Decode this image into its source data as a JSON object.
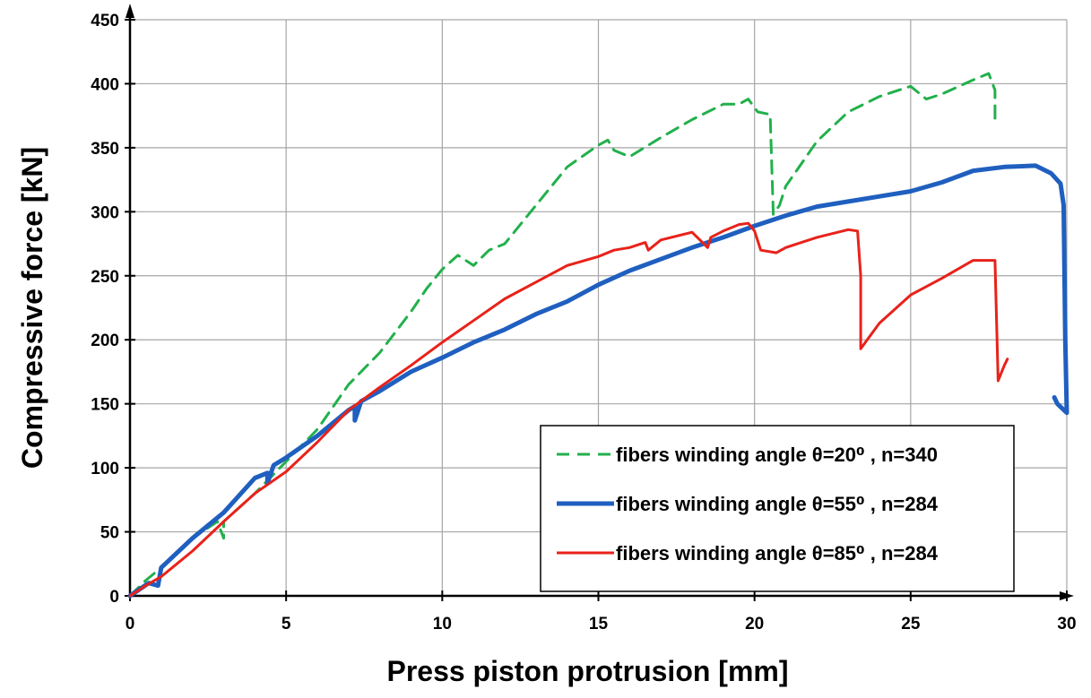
{
  "chart_data": {
    "type": "line",
    "title": "",
    "xlabel": "Press piston protrusion [mm]",
    "ylabel": "Compressive force [kN]",
    "xlim": [
      0,
      30
    ],
    "ylim": [
      0,
      450
    ],
    "x_ticks": [
      0,
      5,
      10,
      15,
      20,
      25,
      30
    ],
    "y_ticks": [
      0,
      50,
      100,
      150,
      200,
      250,
      300,
      350,
      400,
      450
    ],
    "grid": true,
    "legend_position": "bottom-right",
    "series": [
      {
        "name": "fibers winding angle θ=20⁰ , n=340",
        "color": "#22b04c",
        "style": "dashed",
        "points": [
          [
            0,
            0
          ],
          [
            0.5,
            12
          ],
          [
            1,
            22
          ],
          [
            2,
            45
          ],
          [
            2.8,
            58
          ],
          [
            3.0,
            45
          ],
          [
            3.0,
            58
          ],
          [
            4,
            80
          ],
          [
            5,
            105
          ],
          [
            6,
            130
          ],
          [
            7,
            165
          ],
          [
            8,
            190
          ],
          [
            9,
            222
          ],
          [
            9.5,
            240
          ],
          [
            10,
            255
          ],
          [
            10.5,
            266
          ],
          [
            11,
            258
          ],
          [
            11.5,
            270
          ],
          [
            12,
            275
          ],
          [
            13,
            305
          ],
          [
            14,
            335
          ],
          [
            15,
            352
          ],
          [
            15.3,
            356
          ],
          [
            15.5,
            348
          ],
          [
            16,
            343
          ],
          [
            17,
            358
          ],
          [
            18,
            372
          ],
          [
            19,
            384
          ],
          [
            19.5,
            384
          ],
          [
            19.8,
            388
          ],
          [
            20.1,
            378
          ],
          [
            20.5,
            376
          ],
          [
            20.6,
            298
          ],
          [
            20.8,
            305
          ],
          [
            21,
            320
          ],
          [
            22,
            355
          ],
          [
            23,
            378
          ],
          [
            24,
            390
          ],
          [
            25,
            398
          ],
          [
            25.5,
            388
          ],
          [
            26,
            392
          ],
          [
            27,
            403
          ],
          [
            27.5,
            408
          ],
          [
            27.7,
            395
          ],
          [
            27.7,
            367
          ]
        ]
      },
      {
        "name": "fibers winding angle θ=55⁰ , n=284",
        "color": "#1f5fbf",
        "style": "solid",
        "points": [
          [
            0,
            0
          ],
          [
            0.6,
            10
          ],
          [
            0.9,
            8
          ],
          [
            1.0,
            22
          ],
          [
            2,
            45
          ],
          [
            3,
            65
          ],
          [
            4,
            92
          ],
          [
            4.4,
            96
          ],
          [
            4.4,
            88
          ],
          [
            4.6,
            102
          ],
          [
            5,
            108
          ],
          [
            6,
            125
          ],
          [
            7,
            145
          ],
          [
            7.2,
            148
          ],
          [
            7.2,
            137
          ],
          [
            7.4,
            152
          ],
          [
            8,
            160
          ],
          [
            9,
            175
          ],
          [
            10,
            186
          ],
          [
            11,
            198
          ],
          [
            12,
            208
          ],
          [
            13,
            220
          ],
          [
            14,
            230
          ],
          [
            15,
            243
          ],
          [
            16,
            254
          ],
          [
            17,
            263
          ],
          [
            18,
            272
          ],
          [
            19,
            280
          ],
          [
            20,
            289
          ],
          [
            21,
            297
          ],
          [
            22,
            304
          ],
          [
            23,
            308
          ],
          [
            24,
            312
          ],
          [
            25,
            316
          ],
          [
            26,
            323
          ],
          [
            27,
            332
          ],
          [
            28,
            335
          ],
          [
            29,
            336
          ],
          [
            29.5,
            330
          ],
          [
            29.8,
            322
          ],
          [
            29.9,
            305
          ],
          [
            29.95,
            200
          ],
          [
            30,
            143
          ],
          [
            29.7,
            150
          ],
          [
            29.6,
            155
          ]
        ]
      },
      {
        "name": "fibers winding angle θ=85⁰ , n=284",
        "color": "#e8221a",
        "style": "solid",
        "points": [
          [
            0,
            0
          ],
          [
            0.5,
            8
          ],
          [
            1,
            15
          ],
          [
            2,
            35
          ],
          [
            3,
            58
          ],
          [
            4,
            80
          ],
          [
            5,
            97
          ],
          [
            6,
            120
          ],
          [
            7,
            145
          ],
          [
            8,
            163
          ],
          [
            9,
            180
          ],
          [
            10,
            198
          ],
          [
            11,
            215
          ],
          [
            12,
            232
          ],
          [
            13,
            245
          ],
          [
            14,
            258
          ],
          [
            15,
            265
          ],
          [
            15.5,
            270
          ],
          [
            16,
            272
          ],
          [
            16.5,
            276
          ],
          [
            16.6,
            270
          ],
          [
            17,
            278
          ],
          [
            18,
            284
          ],
          [
            18.5,
            272
          ],
          [
            18.6,
            280
          ],
          [
            19,
            285
          ],
          [
            19.5,
            290
          ],
          [
            19.8,
            291
          ],
          [
            20,
            285
          ],
          [
            20.2,
            270
          ],
          [
            20.7,
            268
          ],
          [
            21,
            272
          ],
          [
            22,
            280
          ],
          [
            23,
            286
          ],
          [
            23.3,
            285
          ],
          [
            23.4,
            250
          ],
          [
            23.4,
            193
          ],
          [
            24,
            213
          ],
          [
            25,
            235
          ],
          [
            26,
            248
          ],
          [
            27,
            262
          ],
          [
            27.5,
            262
          ],
          [
            27.7,
            262
          ],
          [
            27.8,
            168
          ],
          [
            28,
            180
          ],
          [
            28.1,
            185
          ]
        ]
      }
    ]
  }
}
